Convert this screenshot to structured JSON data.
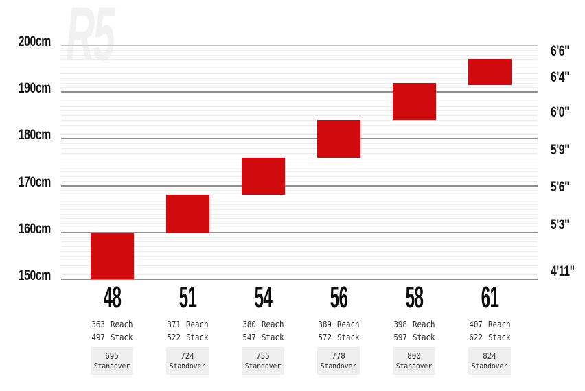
{
  "watermark_label": "R5",
  "colors": {
    "bar_red": "#d10a0e",
    "grid_major": "#8e8e8e",
    "grid_minor": "#ececec",
    "grid_top_line": "#c9c9c9",
    "standover_bg": "#efefef",
    "text": "#121212",
    "watermark": "#f1f1f1"
  },
  "chart_data": {
    "type": "bar",
    "subtype": "vertical-range-columns (rider height range per frame size)",
    "grid": "minor lines every 1cm, major lines every 10cm",
    "legend": "none",
    "categories": [
      "48",
      "51",
      "54",
      "56",
      "58",
      "61"
    ],
    "y_axis_left": {
      "unit": "cm",
      "min": 150,
      "max": 200,
      "minor_step": 1,
      "ticks": [
        {
          "label": "200cm",
          "cm": 200
        },
        {
          "label": "190cm",
          "cm": 190
        },
        {
          "label": "180cm",
          "cm": 180
        },
        {
          "label": "170cm",
          "cm": 170
        },
        {
          "label": "160cm",
          "cm": 160
        },
        {
          "label": "150cm",
          "cm": 150
        }
      ]
    },
    "y_axis_right": {
      "unit": "feet-inches",
      "ticks": [
        {
          "label": "6'6\"",
          "cm": 197
        },
        {
          "label": "6'4\"",
          "cm": 191.5
        },
        {
          "label": "6'0\"",
          "cm": 184
        },
        {
          "label": "5'9\"",
          "cm": 176
        },
        {
          "label": "5'6\"",
          "cm": 168
        },
        {
          "label": "5'3\"",
          "cm": 160
        },
        {
          "label": "4'11\"",
          "cm": 150
        }
      ]
    },
    "column_labels": {
      "reach": "Reach",
      "stack": "Stack",
      "standover": "Standover"
    },
    "sizes": [
      {
        "size": "48",
        "height_min_cm": 150,
        "height_max_cm": 160,
        "reach": "363",
        "stack": "497",
        "standover": "695"
      },
      {
        "size": "51",
        "height_min_cm": 160,
        "height_max_cm": 168,
        "reach": "371",
        "stack": "522",
        "standover": "724"
      },
      {
        "size": "54",
        "height_min_cm": 168,
        "height_max_cm": 176,
        "reach": "380",
        "stack": "547",
        "standover": "755"
      },
      {
        "size": "56",
        "height_min_cm": 176,
        "height_max_cm": 184,
        "reach": "389",
        "stack": "572",
        "standover": "778"
      },
      {
        "size": "58",
        "height_min_cm": 184,
        "height_max_cm": 192,
        "reach": "398",
        "stack": "597",
        "standover": "800"
      },
      {
        "size": "61",
        "height_min_cm": 191.5,
        "height_max_cm": 197,
        "reach": "407",
        "stack": "622",
        "standover": "824"
      }
    ]
  }
}
